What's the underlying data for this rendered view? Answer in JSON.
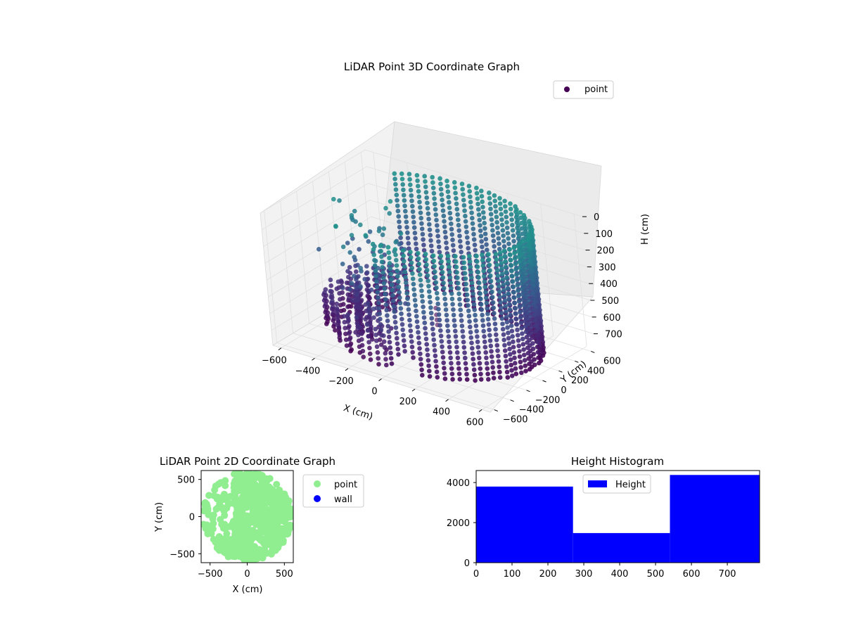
{
  "chart_data": [
    {
      "type": "scatter3d",
      "title": "LiDAR Point 3D Coordinate Graph",
      "xlabel": "X (cm)",
      "ylabel": "Y (cm)",
      "zlabel": "H (cm)",
      "x_ticks": [
        "−600",
        "−400",
        "−200",
        "0",
        "200",
        "400",
        "600"
      ],
      "y_ticks": [
        "−600",
        "−400",
        "−200",
        "0",
        "200",
        "400",
        "600"
      ],
      "z_ticks": [
        "0",
        "100",
        "200",
        "300",
        "400",
        "500",
        "600",
        "700"
      ],
      "xlim": [
        -650,
        650
      ],
      "ylim": [
        -650,
        650
      ],
      "zlim": [
        0,
        790
      ],
      "z_inverted": true,
      "legend": [
        "point"
      ],
      "legend_position": "upper right",
      "colormap": "viridis",
      "wall_radius_cm": 600,
      "wall_arc_deg": [
        -90,
        130
      ],
      "wall_height_cm": [
        0,
        760
      ],
      "interior_arc_deg": [
        145,
        250
      ],
      "interior_arc_radius_cm": 380,
      "overhead_points_h": [
        800,
        840,
        870,
        900
      ]
    },
    {
      "type": "scatter",
      "title": "LiDAR Point 2D Coordinate Graph",
      "xlabel": "X (cm)",
      "ylabel": "Y (cm)",
      "x_ticks": [
        "−500",
        "0",
        "500"
      ],
      "y_ticks": [
        "500",
        "0",
        "−500"
      ],
      "xlim": [
        -620,
        620
      ],
      "ylim": [
        -620,
        620
      ],
      "legend": [
        "point",
        "wall"
      ],
      "legend_position": "outside right",
      "colors": {
        "point": "#90ee90",
        "wall": "#0000ff"
      }
    },
    {
      "type": "bar",
      "title": "Height Histogram",
      "series": [
        {
          "name": "Height",
          "values": [
            3800,
            1480,
            4380
          ]
        }
      ],
      "bins": [
        [
          0,
          270
        ],
        [
          270,
          540
        ],
        [
          540,
          790
        ]
      ],
      "x_ticks": [
        "0",
        "100",
        "200",
        "300",
        "400",
        "500",
        "600",
        "700"
      ],
      "y_ticks": [
        "0",
        "2000",
        "4000"
      ],
      "xlim": [
        0,
        790
      ],
      "ylim": [
        0,
        4600
      ],
      "legend": [
        "Height"
      ],
      "legend_position": "upper center",
      "color": "#0000ff"
    }
  ]
}
